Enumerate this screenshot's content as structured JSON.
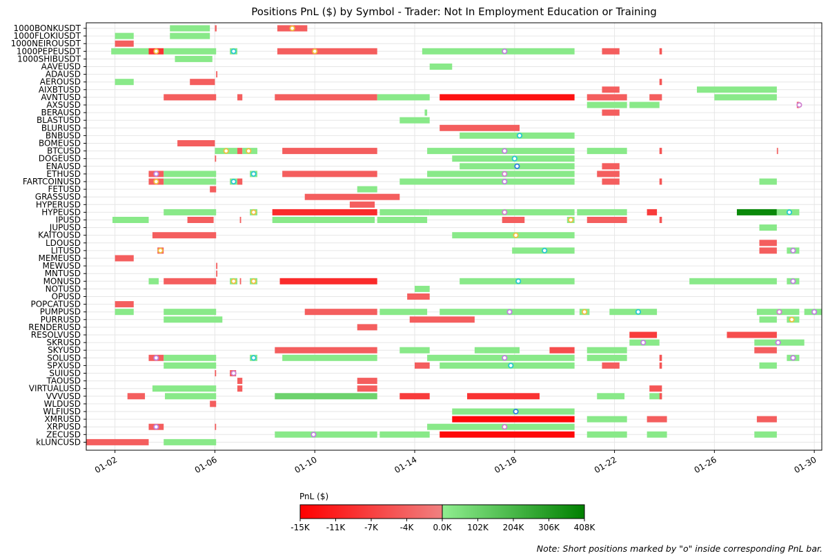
{
  "chart_data": {
    "type": "timeline",
    "title": "Positions PnL ($) by Symbol - Trader: Not In Employment Education or Training",
    "note": "Note: Short positions marked by \"o\" inside corresponding PnL bar.",
    "x_domain": [
      0.85,
      30.3
    ],
    "x_ticks": [
      {
        "day": 2,
        "label": "01-02"
      },
      {
        "day": 6,
        "label": "01-06"
      },
      {
        "day": 10,
        "label": "01-10"
      },
      {
        "day": 14,
        "label": "01-14"
      },
      {
        "day": 18,
        "label": "01-18"
      },
      {
        "day": 22,
        "label": "01-22"
      },
      {
        "day": 26,
        "label": "01-26"
      },
      {
        "day": 30,
        "label": "01-30"
      }
    ],
    "symbols": [
      "1000BONKUSDT",
      "1000FLOKIUSDT",
      "1000NEIROUSDT",
      "1000PEPEUSDT",
      "1000SHIBUSDT",
      "AAVEUSD",
      "ADAUSD",
      "AEROUSD",
      "AIXBTUSD",
      "AVNTUSD",
      "AXSUSD",
      "BERAUSD",
      "BLASTUSD",
      "BLURUSD",
      "BNBUSD",
      "BOMEUSD",
      "BTCUSD",
      "DOGEUSD",
      "ENAUSD",
      "ETHUSD",
      "FARTCOINUSD",
      "FETUSD",
      "GRASSUSD",
      "HYPERUSD",
      "HYPEUSD",
      "IPUSD",
      "JUPUSD",
      "KAITOUSD",
      "LDOUSD",
      "LITUSD",
      "MEMEUSD",
      "MEWUSD",
      "MNTUSD",
      "MONUSD",
      "NOTUSD",
      "OPUSD",
      "POPCATUSD",
      "PUMPUSD",
      "PURRUSD",
      "RENDERUSD",
      "RESOLVUSD",
      "SKRUSD",
      "SKYUSD",
      "SOLUSD",
      "SPXUSD",
      "SUIUSD",
      "TAOUSD",
      "VIRTUALUSD",
      "VVVUSD",
      "WLDUSD",
      "WLFIUSD",
      "XMRUSD",
      "XRPUSD",
      "ZECUSD",
      "kLUNCUSD"
    ],
    "bars": [
      [
        "1000BONKUSDT",
        4.2,
        5.8,
        20000
      ],
      [
        "1000BONKUSDT",
        6.0,
        6.07,
        -3000
      ],
      [
        "1000BONKUSDT",
        8.5,
        9.7,
        -4000
      ],
      [
        "1000FLOKIUSDT",
        2.0,
        2.75,
        20000
      ],
      [
        "1000FLOKIUSDT",
        4.2,
        5.8,
        20000
      ],
      [
        "1000NEIROUSDT",
        2.0,
        2.75,
        -4000
      ],
      [
        "1000PEPEUSDT",
        1.85,
        3.35,
        20000
      ],
      [
        "1000PEPEUSDT",
        3.35,
        3.95,
        -9000
      ],
      [
        "1000PEPEUSDT",
        3.95,
        6.05,
        20000
      ],
      [
        "1000PEPEUSDT",
        6.6,
        6.9,
        20000
      ],
      [
        "1000PEPEUSDT",
        8.5,
        12.5,
        -4000
      ],
      [
        "1000PEPEUSDT",
        14.3,
        20.4,
        20000
      ],
      [
        "1000PEPEUSDT",
        21.5,
        22.2,
        -4000
      ],
      [
        "1000PEPEUSDT",
        23.8,
        23.9,
        -5000
      ],
      [
        "1000SHIBUSDT",
        4.4,
        5.9,
        20000
      ],
      [
        "AAVEUSD",
        14.6,
        15.5,
        20000
      ],
      [
        "ADAUSD",
        6.05,
        6.1,
        -4000
      ],
      [
        "AEROUSD",
        2.0,
        2.75,
        20000
      ],
      [
        "AEROUSD",
        5.0,
        6.0,
        -4000
      ],
      [
        "AEROUSD",
        23.8,
        23.9,
        -5000
      ],
      [
        "AIXBTUSD",
        21.5,
        22.2,
        -4000
      ],
      [
        "AIXBTUSD",
        25.3,
        28.5,
        20000
      ],
      [
        "AVNTUSD",
        3.95,
        6.05,
        -4000
      ],
      [
        "AVNTUSD",
        6.9,
        7.1,
        -4000
      ],
      [
        "AVNTUSD",
        8.4,
        12.5,
        -4000
      ],
      [
        "AVNTUSD",
        12.5,
        14.6,
        20000
      ],
      [
        "AVNTUSD",
        15.0,
        20.4,
        -13000
      ],
      [
        "AVNTUSD",
        20.9,
        22.5,
        -4000
      ],
      [
        "AVNTUSD",
        23.4,
        23.9,
        -4000
      ],
      [
        "AVNTUSD",
        26.0,
        28.5,
        20000
      ],
      [
        "AXSUSD",
        20.9,
        22.5,
        20000
      ],
      [
        "AXSUSD",
        22.6,
        23.8,
        20000
      ],
      [
        "AXSUSD",
        29.3,
        29.4,
        -4000
      ],
      [
        "BERAUSD",
        14.4,
        14.5,
        20000
      ],
      [
        "BERAUSD",
        21.5,
        22.2,
        -4000
      ],
      [
        "BLASTUSD",
        13.4,
        14.6,
        20000
      ],
      [
        "BLURUSD",
        15.0,
        18.2,
        -4000
      ],
      [
        "BNBUSD",
        15.8,
        20.4,
        20000
      ],
      [
        "BOMEUSD",
        4.5,
        6.0,
        -4000
      ],
      [
        "BTCUSD",
        6.0,
        6.9,
        20000
      ],
      [
        "BTCUSD",
        6.9,
        7.1,
        -4000
      ],
      [
        "BTCUSD",
        7.1,
        7.7,
        20000
      ],
      [
        "BTCUSD",
        8.7,
        12.5,
        -4000
      ],
      [
        "BTCUSD",
        14.5,
        20.4,
        20000
      ],
      [
        "BTCUSD",
        20.9,
        22.5,
        20000
      ],
      [
        "BTCUSD",
        23.8,
        23.9,
        -5000
      ],
      [
        "BTCUSD",
        28.5,
        28.55,
        -3000
      ],
      [
        "DOGEUSD",
        6.0,
        6.05,
        -4000
      ],
      [
        "DOGEUSD",
        15.5,
        20.4,
        20000
      ],
      [
        "ENAUSD",
        15.8,
        20.4,
        20000
      ],
      [
        "ENAUSD",
        21.5,
        22.2,
        -4000
      ],
      [
        "ETHUSD",
        3.35,
        3.95,
        -4000
      ],
      [
        "ETHUSD",
        3.95,
        6.05,
        20000
      ],
      [
        "ETHUSD",
        7.4,
        7.7,
        20000
      ],
      [
        "ETHUSD",
        8.7,
        12.5,
        -4000
      ],
      [
        "ETHUSD",
        14.5,
        20.4,
        20000
      ],
      [
        "ETHUSD",
        21.3,
        22.2,
        -4000
      ],
      [
        "FARTCOINUSD",
        3.35,
        3.95,
        -4000
      ],
      [
        "FARTCOINUSD",
        3.95,
        6.05,
        20000
      ],
      [
        "FARTCOINUSD",
        6.6,
        6.9,
        20000
      ],
      [
        "FARTCOINUSD",
        6.9,
        7.1,
        -4000
      ],
      [
        "FARTCOINUSD",
        13.4,
        20.4,
        20000
      ],
      [
        "FARTCOINUSD",
        21.5,
        22.2,
        -4000
      ],
      [
        "FARTCOINUSD",
        23.8,
        23.9,
        -5000
      ],
      [
        "FARTCOINUSD",
        27.8,
        28.5,
        20000
      ],
      [
        "FETUSD",
        5.8,
        6.05,
        -4000
      ],
      [
        "FETUSD",
        11.7,
        12.5,
        20000
      ],
      [
        "GRASSUSD",
        9.6,
        13.4,
        -4000
      ],
      [
        "HYPERUSD",
        11.4,
        12.4,
        -4000
      ],
      [
        "HYPEUSD",
        3.95,
        6.05,
        20000
      ],
      [
        "HYPEUSD",
        7.4,
        7.7,
        20000
      ],
      [
        "HYPEUSD",
        8.3,
        12.5,
        -10000
      ],
      [
        "HYPEUSD",
        12.6,
        14.6,
        20000
      ],
      [
        "HYPEUSD",
        14.6,
        20.4,
        20000
      ],
      [
        "HYPEUSD",
        20.5,
        22.5,
        20000
      ],
      [
        "HYPEUSD",
        23.3,
        23.7,
        -8000
      ],
      [
        "HYPEUSD",
        26.9,
        28.5,
        380000
      ],
      [
        "HYPEUSD",
        28.5,
        29.4,
        20000
      ],
      [
        "IPUSD",
        1.9,
        3.35,
        20000
      ],
      [
        "IPUSD",
        4.9,
        5.95,
        -4000
      ],
      [
        "IPUSD",
        7.0,
        7.05,
        -4000
      ],
      [
        "IPUSD",
        8.3,
        12.4,
        20000
      ],
      [
        "IPUSD",
        12.5,
        14.5,
        20000
      ],
      [
        "IPUSD",
        17.5,
        18.4,
        -4000
      ],
      [
        "IPUSD",
        20.1,
        20.4,
        20000
      ],
      [
        "IPUSD",
        20.9,
        22.5,
        -4000
      ],
      [
        "IPUSD",
        23.8,
        23.9,
        -5000
      ],
      [
        "JUPUSD",
        27.8,
        28.5,
        20000
      ],
      [
        "KAITOUSD",
        3.5,
        6.05,
        -4000
      ],
      [
        "KAITOUSD",
        15.5,
        20.4,
        20000
      ],
      [
        "LDOUSD",
        27.8,
        28.5,
        -4000
      ],
      [
        "LITUSD",
        3.7,
        3.95,
        -4000
      ],
      [
        "LITUSD",
        17.9,
        20.4,
        20000
      ],
      [
        "LITUSD",
        27.8,
        28.5,
        -4000
      ],
      [
        "LITUSD",
        28.9,
        29.4,
        20000
      ],
      [
        "MEMEUSD",
        2.0,
        2.75,
        -4000
      ],
      [
        "MEWUSD",
        6.05,
        6.1,
        -4000
      ],
      [
        "MNTUSD",
        6.05,
        6.1,
        -4000
      ],
      [
        "MONUSD",
        3.35,
        3.75,
        20000
      ],
      [
        "MONUSD",
        3.95,
        6.05,
        -4000
      ],
      [
        "MONUSD",
        6.6,
        6.9,
        20000
      ],
      [
        "MONUSD",
        7.0,
        7.05,
        -4000
      ],
      [
        "MONUSD",
        7.4,
        7.7,
        20000
      ],
      [
        "MONUSD",
        8.6,
        12.5,
        -10000
      ],
      [
        "MONUSD",
        15.8,
        20.4,
        20000
      ],
      [
        "MONUSD",
        25.0,
        28.5,
        20000
      ],
      [
        "MONUSD",
        28.9,
        29.4,
        20000
      ],
      [
        "NOTUSD",
        14.0,
        14.6,
        20000
      ],
      [
        "OPUSD",
        13.7,
        14.6,
        -4000
      ],
      [
        "POPCATUSD",
        2.0,
        2.75,
        -4000
      ],
      [
        "PUMPUSD",
        2.0,
        2.75,
        20000
      ],
      [
        "PUMPUSD",
        3.95,
        6.05,
        20000
      ],
      [
        "PUMPUSD",
        9.6,
        12.5,
        -4000
      ],
      [
        "PUMPUSD",
        12.6,
        14.5,
        20000
      ],
      [
        "PUMPUSD",
        15.0,
        20.4,
        20000
      ],
      [
        "PUMPUSD",
        20.6,
        21.0,
        20000
      ],
      [
        "PUMPUSD",
        21.8,
        23.7,
        20000
      ],
      [
        "PUMPUSD",
        27.7,
        29.4,
        20000
      ],
      [
        "PUMPUSD",
        29.6,
        30.3,
        20000
      ],
      [
        "PURRUSD",
        3.95,
        6.3,
        20000
      ],
      [
        "PURRUSD",
        13.8,
        16.4,
        -4000
      ],
      [
        "PURRUSD",
        27.8,
        28.5,
        20000
      ],
      [
        "PURRUSD",
        28.9,
        29.4,
        20000
      ],
      [
        "RENDERUSD",
        11.7,
        12.5,
        -4000
      ],
      [
        "RESOLVUSD",
        22.6,
        23.7,
        -8000
      ],
      [
        "RESOLVUSD",
        26.5,
        28.5,
        -6000
      ],
      [
        "SKRUSD",
        22.6,
        23.8,
        20000
      ],
      [
        "SKRUSD",
        27.6,
        29.6,
        20000
      ],
      [
        "SKYUSD",
        8.4,
        12.5,
        -4000
      ],
      [
        "SKYUSD",
        13.4,
        14.6,
        20000
      ],
      [
        "SKYUSD",
        16.4,
        18.2,
        20000
      ],
      [
        "SKYUSD",
        19.4,
        20.4,
        -6000
      ],
      [
        "SKYUSD",
        20.9,
        22.5,
        20000
      ],
      [
        "SKYUSD",
        27.6,
        28.5,
        -4000
      ],
      [
        "SOLUSD",
        3.35,
        3.95,
        -4000
      ],
      [
        "SOLUSD",
        3.95,
        6.05,
        20000
      ],
      [
        "SOLUSD",
        7.4,
        7.7,
        20000
      ],
      [
        "SOLUSD",
        8.7,
        12.5,
        20000
      ],
      [
        "SOLUSD",
        14.5,
        20.4,
        20000
      ],
      [
        "SOLUSD",
        20.9,
        22.5,
        20000
      ],
      [
        "SOLUSD",
        23.8,
        23.9,
        -5000
      ],
      [
        "SOLUSD",
        28.9,
        29.4,
        20000
      ],
      [
        "SPXUSD",
        3.95,
        6.05,
        20000
      ],
      [
        "SPXUSD",
        14.0,
        14.6,
        -4000
      ],
      [
        "SPXUSD",
        15.0,
        20.4,
        20000
      ],
      [
        "SPXUSD",
        21.5,
        22.2,
        -4000
      ],
      [
        "SPXUSD",
        23.8,
        23.9,
        -5000
      ],
      [
        "SPXUSD",
        27.8,
        28.5,
        20000
      ],
      [
        "SUIUSD",
        6.0,
        6.05,
        -4000
      ],
      [
        "SUIUSD",
        6.6,
        6.85,
        -4000
      ],
      [
        "TAOUSD",
        6.9,
        7.1,
        -4000
      ],
      [
        "TAOUSD",
        11.7,
        12.5,
        -4000
      ],
      [
        "VIRTUALUSD",
        3.5,
        6.05,
        20000
      ],
      [
        "VIRTUALUSD",
        6.9,
        7.1,
        -4000
      ],
      [
        "VIRTUALUSD",
        11.7,
        12.5,
        -4000
      ],
      [
        "VIRTUALUSD",
        23.4,
        23.9,
        -5000
      ],
      [
        "VVVUSD",
        2.5,
        3.2,
        -4000
      ],
      [
        "VVVUSD",
        4.0,
        6.05,
        20000
      ],
      [
        "VVVUSD",
        8.4,
        12.5,
        100000
      ],
      [
        "VVVUSD",
        13.4,
        14.6,
        -8000
      ],
      [
        "VVVUSD",
        16.1,
        19.0,
        -9000
      ],
      [
        "VVVUSD",
        21.3,
        22.4,
        20000
      ],
      [
        "VVVUSD",
        23.4,
        23.9,
        20000
      ],
      [
        "VVVUSD",
        23.8,
        23.9,
        -5000
      ],
      [
        "WLDUSD",
        5.8,
        6.05,
        -4000
      ],
      [
        "WLFIUSD",
        15.5,
        20.4,
        20000
      ],
      [
        "XMRUSD",
        15.5,
        20.4,
        -14000
      ],
      [
        "XMRUSD",
        20.9,
        22.5,
        20000
      ],
      [
        "XMRUSD",
        23.3,
        24.1,
        -4000
      ],
      [
        "XMRUSD",
        27.7,
        28.5,
        -4000
      ],
      [
        "XRPUSD",
        3.35,
        3.95,
        -4000
      ],
      [
        "XRPUSD",
        6.0,
        6.05,
        -4000
      ],
      [
        "XRPUSD",
        14.5,
        20.4,
        20000
      ],
      [
        "ZECUSD",
        8.4,
        12.5,
        20000
      ],
      [
        "ZECUSD",
        12.6,
        14.6,
        20000
      ],
      [
        "ZECUSD",
        15.0,
        20.4,
        -14000
      ],
      [
        "ZECUSD",
        20.9,
        22.5,
        20000
      ],
      [
        "ZECUSD",
        23.3,
        24.1,
        20000
      ],
      [
        "ZECUSD",
        27.6,
        28.5,
        20000
      ],
      [
        "kLUNCUSD",
        0.85,
        3.35,
        -4000
      ],
      [
        "kLUNCUSD",
        3.95,
        6.05,
        20000
      ]
    ],
    "short_markers": [
      [
        "1000BONKUSDT",
        9.1,
        "#f0c040"
      ],
      [
        "1000PEPEUSDT",
        3.65,
        "#f0c040"
      ],
      [
        "1000PEPEUSDT",
        6.75,
        "#28c8d0"
      ],
      [
        "1000PEPEUSDT",
        10.0,
        "#f0c040"
      ],
      [
        "1000PEPEUSDT",
        17.6,
        "#c080e0"
      ],
      [
        "AXSUSD",
        29.4,
        "#d080d0"
      ],
      [
        "BNBUSD",
        18.2,
        "#28c8d0"
      ],
      [
        "BTCUSD",
        6.45,
        "#f0c040"
      ],
      [
        "BTCUSD",
        7.35,
        "#f0c040"
      ],
      [
        "BTCUSD",
        17.6,
        "#c080e0"
      ],
      [
        "DOGEUSD",
        18.0,
        "#28c8d0"
      ],
      [
        "ENAUSD",
        18.1,
        "#3080e0"
      ],
      [
        "ETHUSD",
        3.65,
        "#c080e0"
      ],
      [
        "ETHUSD",
        7.55,
        "#28c8d0"
      ],
      [
        "ETHUSD",
        17.6,
        "#d080d0"
      ],
      [
        "FARTCOINUSD",
        3.65,
        "#f0c040"
      ],
      [
        "FARTCOINUSD",
        6.75,
        "#28c8d0"
      ],
      [
        "FARTCOINUSD",
        17.6,
        "#c080e0"
      ],
      [
        "HYPEUSD",
        7.55,
        "#f0c040"
      ],
      [
        "HYPEUSD",
        17.6,
        "#d080d0"
      ],
      [
        "HYPEUSD",
        29.0,
        "#28c8d0"
      ],
      [
        "IPUSD",
        20.25,
        "#f0c040"
      ],
      [
        "KAITOUSD",
        18.05,
        "#f0c040"
      ],
      [
        "LITUSD",
        3.82,
        "#f0c040"
      ],
      [
        "LITUSD",
        19.2,
        "#28c8d0"
      ],
      [
        "LITUSD",
        29.15,
        "#c080e0"
      ],
      [
        "MONUSD",
        6.75,
        "#f0c040"
      ],
      [
        "MONUSD",
        7.55,
        "#f0c040"
      ],
      [
        "MONUSD",
        18.15,
        "#28c8d0"
      ],
      [
        "MONUSD",
        29.15,
        "#c080e0"
      ],
      [
        "PUMPUSD",
        17.8,
        "#c080e0"
      ],
      [
        "PUMPUSD",
        20.8,
        "#f0c040"
      ],
      [
        "PUMPUSD",
        22.95,
        "#28c8d0"
      ],
      [
        "PUMPUSD",
        28.6,
        "#d080d0"
      ],
      [
        "PUMPUSD",
        30.0,
        "#c080e0"
      ],
      [
        "PURRUSD",
        29.1,
        "#f0c040"
      ],
      [
        "SKRUSD",
        23.15,
        "#c080e0"
      ],
      [
        "SKRUSD",
        28.55,
        "#c080e0"
      ],
      [
        "SOLUSD",
        3.65,
        "#c080e0"
      ],
      [
        "SOLUSD",
        7.55,
        "#28c8d0"
      ],
      [
        "SOLUSD",
        17.6,
        "#c080e0"
      ],
      [
        "SOLUSD",
        29.15,
        "#c080e0"
      ],
      [
        "SPXUSD",
        17.85,
        "#28c8d0"
      ],
      [
        "SUIUSD",
        6.75,
        "#d080d0"
      ],
      [
        "WLFIUSD",
        18.05,
        "#3080e0"
      ],
      [
        "XRPUSD",
        3.65,
        "#c080e0"
      ],
      [
        "XRPUSD",
        17.6,
        "#d080d0"
      ],
      [
        "ZECUSD",
        9.95,
        "#c080e0"
      ]
    ],
    "colorbar": {
      "label": "PnL ($)",
      "ticks": [
        "-15K",
        "-11K",
        "-7K",
        "-4K",
        "0.0K",
        "102K",
        "204K",
        "306K",
        "408K"
      ],
      "neg_range": [
        -15000,
        0
      ],
      "pos_range": [
        0,
        408000
      ],
      "colors": {
        "neg_min": "#ff0000",
        "neg_max": "#f08080",
        "pos_min": "#90ee90",
        "pos_max": "#008000"
      }
    }
  }
}
